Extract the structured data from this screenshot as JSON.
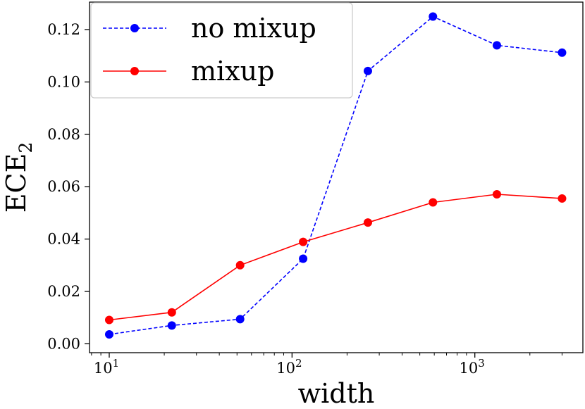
{
  "chart_data": {
    "type": "line",
    "xlabel": "width",
    "ylabel": "ECE",
    "ylabel_subscript": "2",
    "x_scale": "log",
    "xlim": [
      7.8,
      3900
    ],
    "ylim": [
      -0.0034,
      0.1305
    ],
    "x_ticks": [
      {
        "value": 10,
        "base": "10",
        "exp": "1"
      },
      {
        "value": 100,
        "base": "10",
        "exp": "2"
      },
      {
        "value": 1000,
        "base": "10",
        "exp": "3"
      }
    ],
    "y_ticks": [
      {
        "value": 0.0,
        "label": "0.00"
      },
      {
        "value": 0.02,
        "label": "0.02"
      },
      {
        "value": 0.04,
        "label": "0.04"
      },
      {
        "value": 0.06,
        "label": "0.06"
      },
      {
        "value": 0.08,
        "label": "0.08"
      },
      {
        "value": 0.1,
        "label": "0.10"
      },
      {
        "value": 0.12,
        "label": "0.12"
      }
    ],
    "legend_position": "top-left",
    "grid": false,
    "series": [
      {
        "name": "no mixup",
        "color": "#0000ff",
        "line_style": "dashed",
        "x": [
          10,
          22,
          52,
          115,
          260,
          590,
          1320,
          3000
        ],
        "y": [
          0.0036,
          0.007,
          0.0094,
          0.0325,
          0.1042,
          0.125,
          0.114,
          0.1112
        ]
      },
      {
        "name": "mixup",
        "color": "#ff0000",
        "line_style": "solid",
        "x": [
          10,
          22,
          52,
          115,
          260,
          590,
          1320,
          3000
        ],
        "y": [
          0.0091,
          0.012,
          0.03,
          0.0389,
          0.0463,
          0.054,
          0.0571,
          0.0555
        ]
      }
    ]
  }
}
